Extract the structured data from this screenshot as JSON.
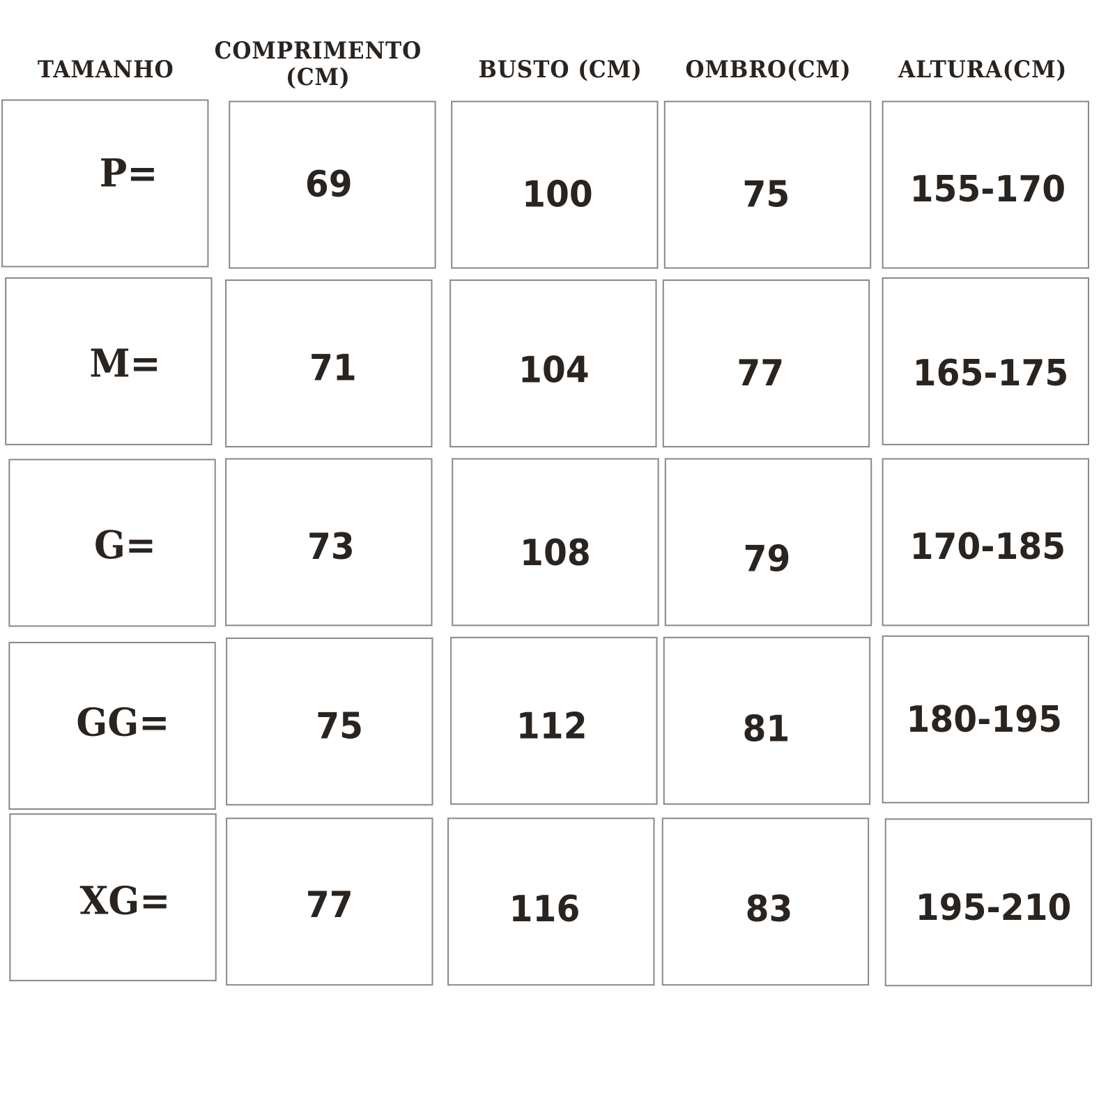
{
  "table": {
    "headers": [
      "TAMANHO",
      "COMPRIMENTO\n(CM)",
      "BUSTO (CM)",
      "OMBRO(CM)",
      "ALTURA(CM)"
    ],
    "rows": [
      [
        "P=",
        "69",
        "100",
        "75",
        "155-170"
      ],
      [
        "M=",
        "71",
        "104",
        "77",
        "165-175"
      ],
      [
        "G=",
        "73",
        "108",
        "79",
        "170-185"
      ],
      [
        "GG=",
        "75",
        "112",
        "81",
        "180-195"
      ],
      [
        "XG=",
        "77",
        "116",
        "83",
        "195-210"
      ]
    ]
  },
  "colors": {
    "text": "#2a2420",
    "border": "#8a8a8a",
    "background": "#ffffff"
  }
}
